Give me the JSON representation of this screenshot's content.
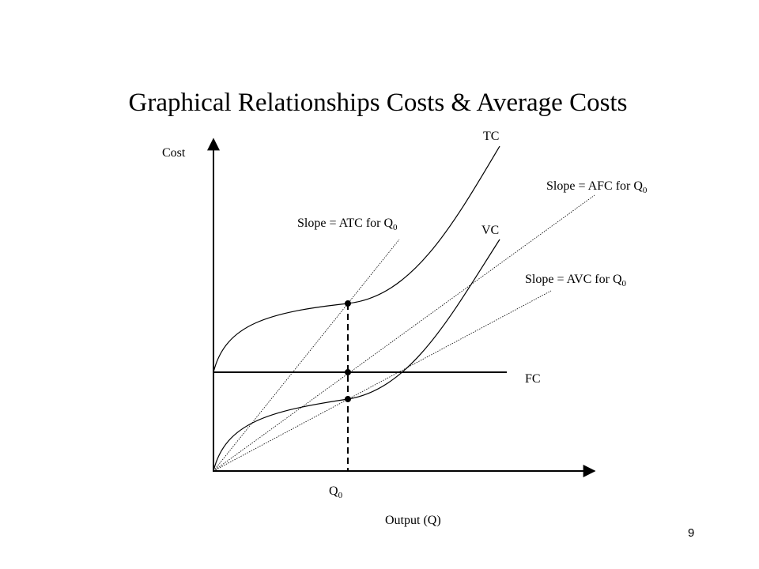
{
  "title": "Graphical Relationships Costs & Average Costs",
  "y_axis_label": "Cost",
  "x_axis_label": "Output (Q)",
  "curves": {
    "tc": "TC",
    "vc": "VC",
    "fc": "FC"
  },
  "slopes": {
    "atc": {
      "text": "Slope = ATC for Q",
      "sub": "0"
    },
    "afc": {
      "text": "Slope = AFC for Q",
      "sub": "0"
    },
    "avc": {
      "text": "Slope = AVC for Q",
      "sub": "0"
    }
  },
  "q_label": {
    "text": "Q",
    "sub": "0"
  },
  "page_number": "9"
}
